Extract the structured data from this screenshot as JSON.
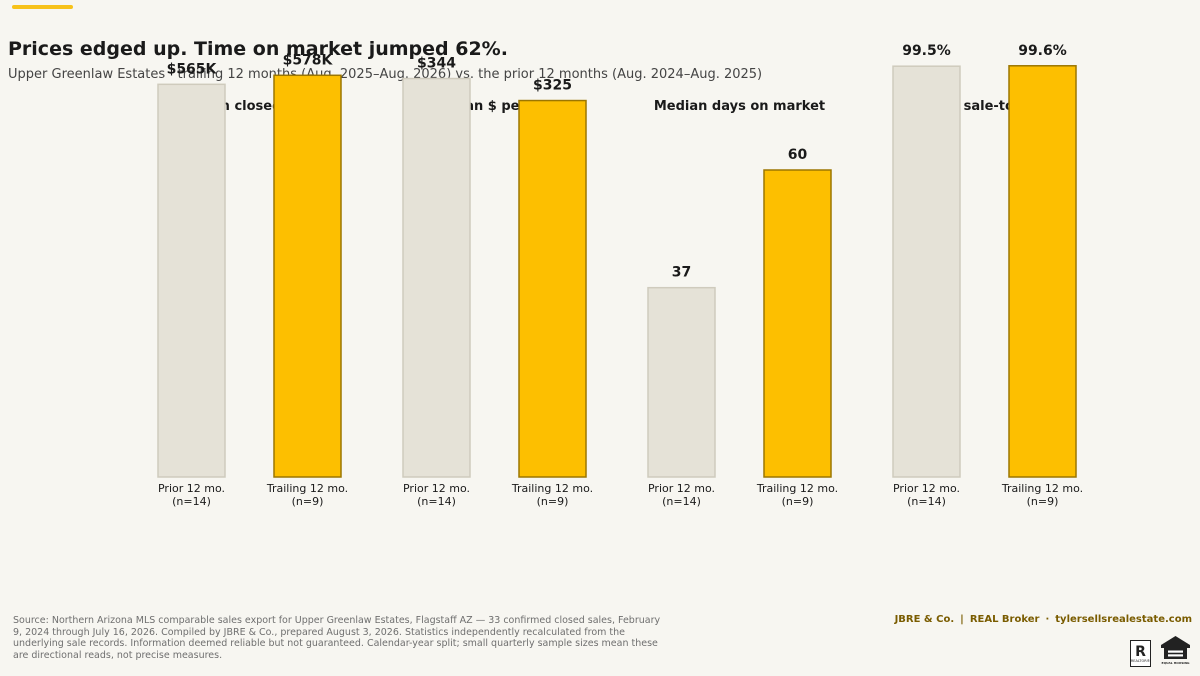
{
  "header": {
    "title": "Prices edged up. Time on market jumped 62%.",
    "subtitle": "Upper Greenlaw Estates · trailing 12 months (Aug. 2025–Aug. 2026) vs. the prior 12 months (Aug. 2024–Aug. 2025)"
  },
  "colors": {
    "prior_fill": "#e5e2d7",
    "prior_stroke": "#cfcbbd",
    "trailing_fill": "#fdbf00",
    "trailing_stroke": "#9c7600",
    "accent": "#f7c21a",
    "brand_text": "#7a5c00"
  },
  "chart_data": [
    {
      "type": "bar",
      "title": "Median closed price",
      "categories": [
        "Prior 12 mo.\n(n=14)",
        "Trailing 12 mo.\n(n=9)"
      ],
      "values": [
        565,
        578
      ],
      "value_labels": [
        "$565K",
        "$578K"
      ],
      "unit": "$K",
      "ylim": [
        0,
        600
      ]
    },
    {
      "type": "bar",
      "title": "Median $ per sqft",
      "categories": [
        "Prior 12 mo.\n(n=14)",
        "Trailing 12 mo.\n(n=9)"
      ],
      "values": [
        344,
        325
      ],
      "value_labels": [
        "$344",
        "$325"
      ],
      "unit": "$",
      "ylim": [
        0,
        360
      ]
    },
    {
      "type": "bar",
      "title": "Median days on market",
      "categories": [
        "Prior 12 mo.\n(n=14)",
        "Trailing 12 mo.\n(n=9)"
      ],
      "values": [
        37,
        60
      ],
      "value_labels": [
        "37",
        "60"
      ],
      "unit": "days",
      "ylim": [
        0,
        81.5
      ]
    },
    {
      "type": "bar",
      "title": "Avg. sale-to-list",
      "categories": [
        "Prior 12 mo.\n(n=14)",
        "Trailing 12 mo.\n(n=9)"
      ],
      "values": [
        99.5,
        99.6
      ],
      "value_labels": [
        "99.5%",
        "99.6%"
      ],
      "unit": "%",
      "ylim": [
        0,
        101
      ]
    }
  ],
  "footer": {
    "source": "Source: Northern Arizona MLS comparable sales export for Upper Greenlaw Estates, Flagstaff AZ — 33 confirmed closed sales, February 9, 2024 through July 16, 2026. Compiled by JBRE & Co., prepared August 3, 2026. Statistics independently recalculated from the underlying sale records. Information deemed reliable but not guaranteed. Calendar-year split; small quarterly sample sizes mean these are directional reads, not precise measures.",
    "brand_1": "JBRE & Co.",
    "brand_sep_1": "|",
    "brand_2": "REAL Broker",
    "brand_sep_2": "·",
    "brand_3": "tylersellsrealestate.com",
    "realtor_mark": "R",
    "realtor_text": "REALTOR®",
    "eho_text": "EQUAL HOUSING OPPORTUNITY"
  }
}
